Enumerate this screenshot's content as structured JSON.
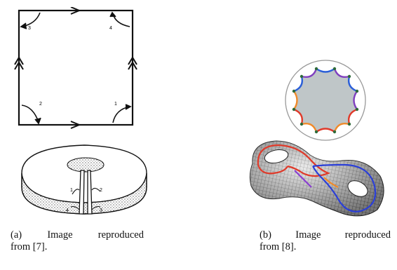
{
  "figure": {
    "subfigures": [
      {
        "id": "a",
        "caption_line1": [
          "(a)",
          "Image",
          "reproduced"
        ],
        "caption_line2": "from [7].",
        "square_labels": [
          "3",
          "4",
          "2",
          "1"
        ],
        "torus_labels": [
          "1",
          "2",
          "4",
          "3"
        ]
      },
      {
        "id": "b",
        "caption_line1": [
          "(b)",
          "Image",
          "reproduced"
        ],
        "caption_line2": "from [8].",
        "octagon_edge_colors": [
          "#2b5fd8",
          "#7f3fbf",
          "#e03a2a",
          "#f08a2a"
        ],
        "surface_curve_colors": [
          "#e03a2a",
          "#2b3fd8",
          "#8a3fd0",
          "#f08a2a"
        ]
      }
    ]
  }
}
